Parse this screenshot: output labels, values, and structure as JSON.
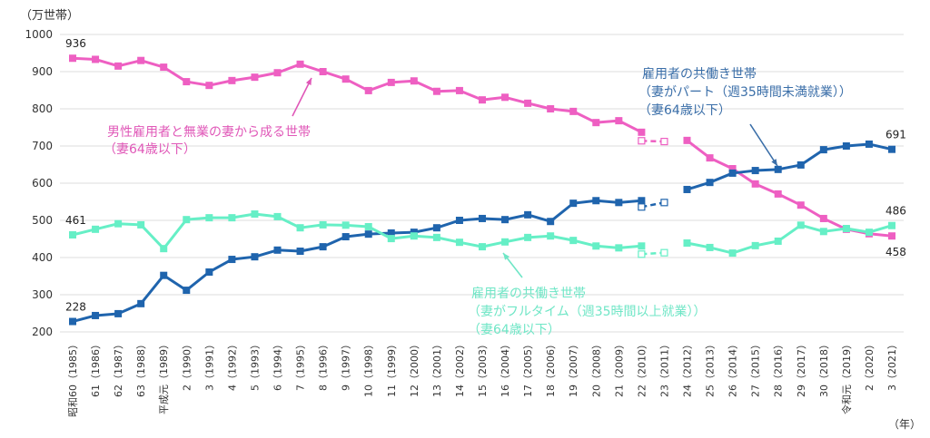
{
  "chart_data": {
    "type": "line",
    "unit_label": "（万世帯）",
    "x_unit_label": "（年）",
    "ylim": [
      200,
      1000
    ],
    "yticks": [
      200,
      300,
      400,
      500,
      600,
      700,
      800,
      900,
      1000
    ],
    "grid": true,
    "x": [
      1985,
      1986,
      1987,
      1988,
      1989,
      1990,
      1991,
      1992,
      1993,
      1994,
      1995,
      1996,
      1997,
      1998,
      1999,
      2000,
      2001,
      2002,
      2003,
      2004,
      2005,
      2006,
      2007,
      2008,
      2009,
      2010,
      2011,
      2012,
      2013,
      2014,
      2015,
      2016,
      2017,
      2018,
      2019,
      2020,
      2021
    ],
    "x_tick_labels": [
      "昭和60（1985）",
      "61（1986）",
      "62（1987）",
      "63（1988）",
      "平成元（1989）",
      "2（1990）",
      "3（1991）",
      "4（1992）",
      "5（1993）",
      "6（1994）",
      "7（1995）",
      "8（1996）",
      "9（1997）",
      "10（1998）",
      "11（1999）",
      "12（2000）",
      "13（2001）",
      "14（2002）",
      "15（2003）",
      "16（2004）",
      "17（2005）",
      "18（2006）",
      "19（2007）",
      "20（2008）",
      "21（2009）",
      "22（2010）",
      "23（2011）",
      "24（2012）",
      "25（2013）",
      "26（2014）",
      "27（2015）",
      "28（2016）",
      "29（2017）",
      "30（2018）",
      "令和元（2019）",
      "2（2020）",
      "3（2021）"
    ],
    "series": [
      {
        "key": "single_income",
        "name_lines": [
          "男性雇用者と無業の妻から成る世帯",
          "（妻64歳以下）"
        ],
        "color": "#ee5fc2",
        "text_color": "#e058b8",
        "values": [
          936,
          933,
          915,
          930,
          912,
          873,
          863,
          876,
          885,
          897,
          920,
          900,
          880,
          849,
          871,
          875,
          847,
          849,
          824,
          831,
          815,
          800,
          793,
          763,
          768,
          737,
          null,
          715,
          668,
          639,
          598,
          571,
          541,
          505,
          476,
          464,
          458
        ],
        "hollow": {
          "x": [
            2010,
            2011
          ],
          "values": [
            714,
            712
          ]
        },
        "labels": [
          {
            "x": 1985,
            "text": "936"
          },
          {
            "x": 2021,
            "text": "458"
          }
        ]
      },
      {
        "key": "dual_part_time",
        "name_lines": [
          "雇用者の共働き世帯",
          "（妻がパート（週35時間未満就業））",
          "（妻64歳以下）"
        ],
        "color": "#1f64ad",
        "text_color": "#3a6ea8",
        "values": [
          228,
          244,
          249,
          276,
          352,
          312,
          361,
          395,
          402,
          420,
          417,
          429,
          456,
          463,
          466,
          468,
          480,
          500,
          505,
          502,
          515,
          497,
          546,
          553,
          548,
          553,
          null,
          583,
          602,
          627,
          634,
          637,
          649,
          690,
          700,
          705,
          691
        ],
        "hollow": {
          "x": [
            2010,
            2011
          ],
          "values": [
            536,
            548
          ]
        },
        "labels": [
          {
            "x": 1985,
            "text": "228"
          },
          {
            "x": 2021,
            "text": "691"
          }
        ]
      },
      {
        "key": "dual_full_time",
        "name_lines": [
          "雇用者の共働き世帯",
          "（妻がフルタイム（週35時間以上就業））",
          "（妻64歳以下）"
        ],
        "color": "#66efc6",
        "text_color": "#6fe6c6",
        "values": [
          461,
          476,
          491,
          488,
          424,
          502,
          507,
          507,
          517,
          510,
          480,
          488,
          487,
          483,
          451,
          458,
          454,
          441,
          429,
          442,
          454,
          458,
          446,
          431,
          426,
          431,
          null,
          439,
          427,
          412,
          432,
          444,
          487,
          470,
          478,
          468,
          486
        ],
        "hollow": {
          "x": [
            2010,
            2011
          ],
          "values": [
            409,
            413
          ]
        },
        "labels": [
          {
            "x": 1985,
            "text": "461"
          },
          {
            "x": 2021,
            "text": "486"
          }
        ]
      }
    ]
  }
}
